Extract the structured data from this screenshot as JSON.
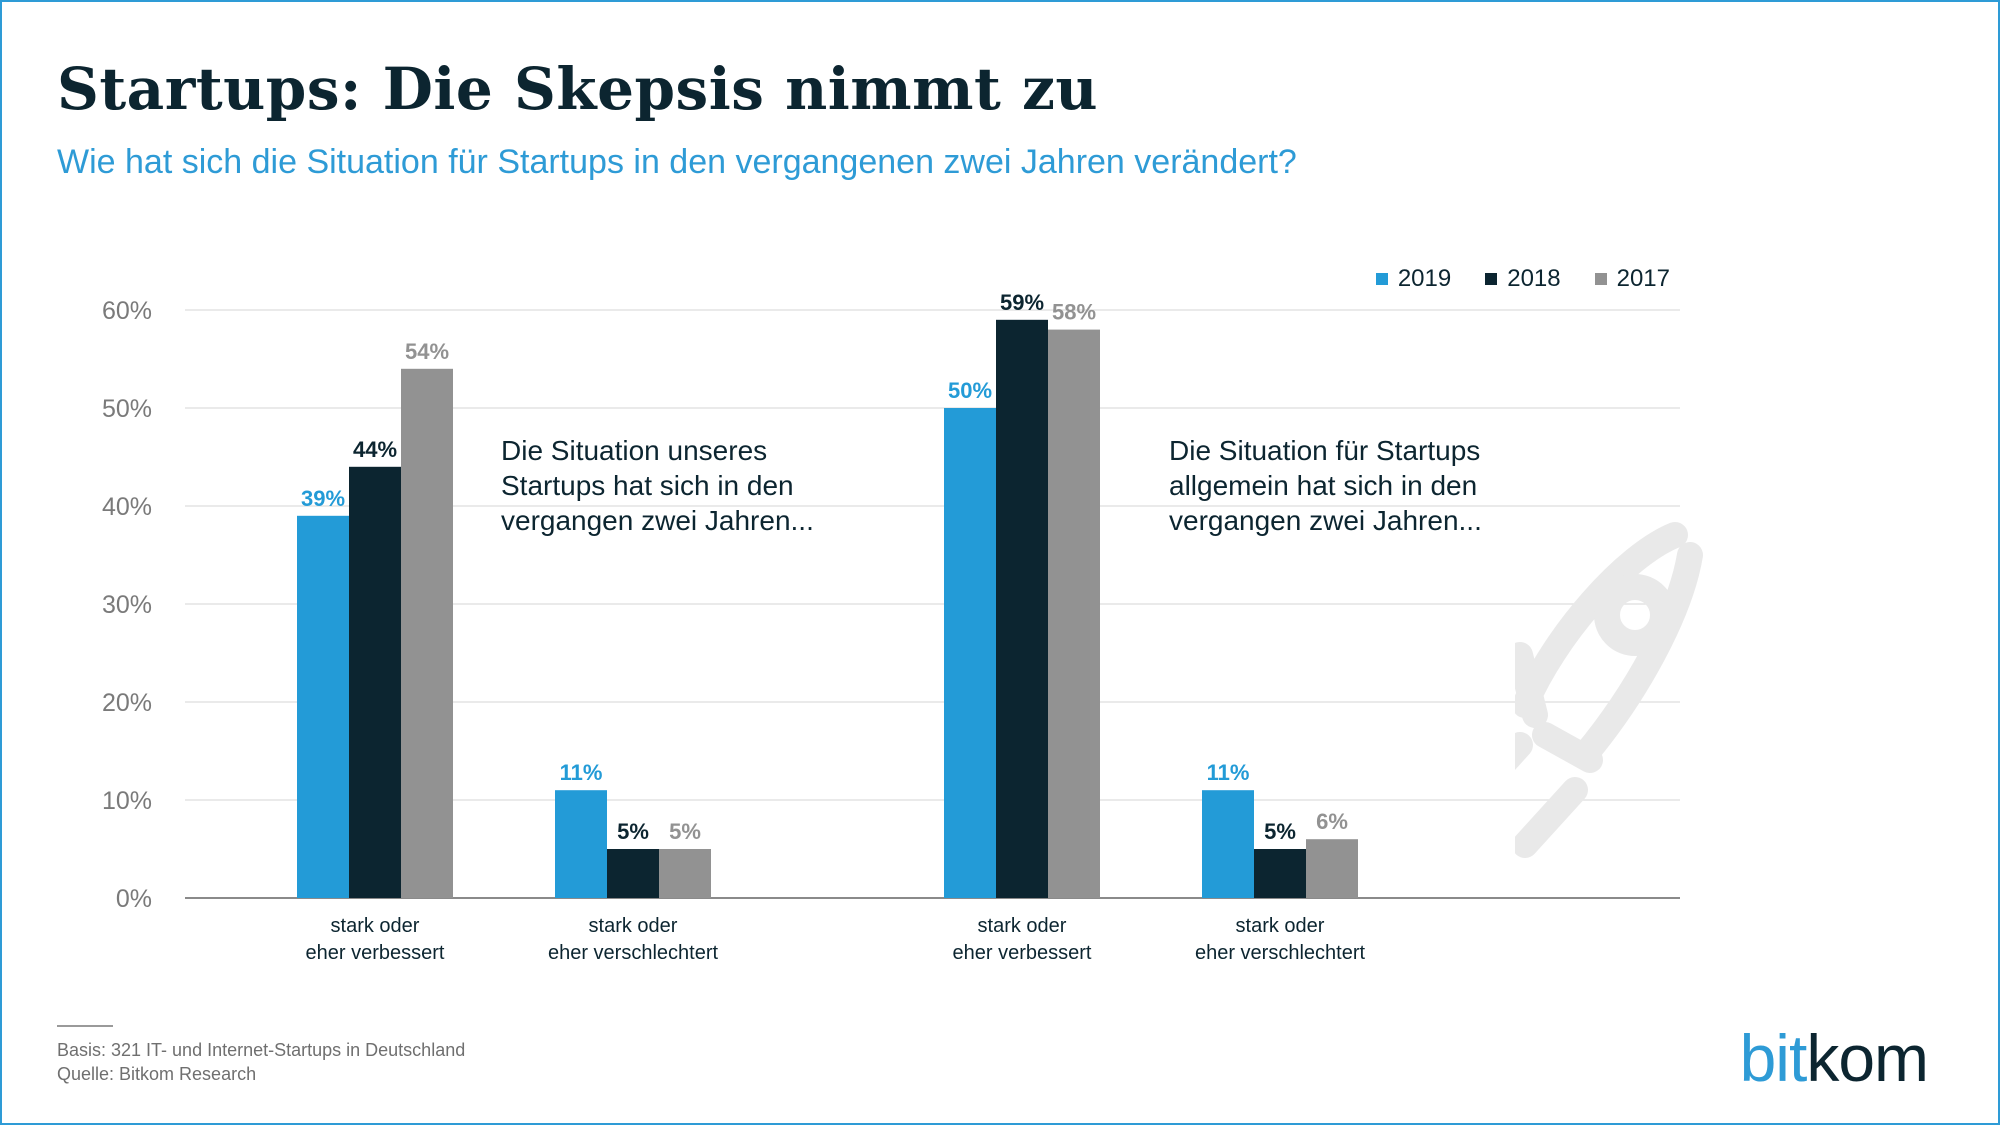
{
  "title": "Startups: Die Skepsis nimmt zu",
  "subtitle": "Wie hat sich die Situation für Startups in den vergangenen zwei Jahren verändert?",
  "annotations": {
    "left": [
      "Die Situation unseres",
      "Startups hat sich in den",
      "vergangen zwei Jahren..."
    ],
    "right": [
      "Die Situation für Startups",
      "allgemein hat sich in den",
      "vergangen zwei Jahren..."
    ]
  },
  "footer": {
    "basis": "Basis: 321 IT- und Internet-Startups in Deutschland",
    "source": "Quelle: Bitkom Research"
  },
  "logo": {
    "part1": "bit",
    "part2": "kom"
  },
  "decoration": {
    "icon": "rocket-icon",
    "color": "#e9e9e9"
  },
  "colors": {
    "2019": "#239bd7",
    "2018": "#0c2530",
    "2017": "#929292",
    "grid": "#e4e4e4",
    "axis": "#8a8a8a",
    "tick": "#7a7a7a"
  },
  "chart_data": {
    "type": "bar",
    "categories": [
      [
        "stark oder",
        "eher verbessert"
      ],
      [
        "stark oder",
        "eher verschlechtert"
      ],
      [
        "stark oder",
        "eher verbessert"
      ],
      [
        "stark oder",
        "eher verschlechtert"
      ]
    ],
    "series": [
      {
        "name": "2019",
        "values": [
          39,
          11,
          50,
          11
        ],
        "labels": [
          "39%",
          "11%",
          "50%",
          "11%"
        ]
      },
      {
        "name": "2018",
        "values": [
          44,
          5,
          59,
          5
        ],
        "labels": [
          "44%",
          "5%",
          "59%",
          "5%"
        ]
      },
      {
        "name": "2017",
        "values": [
          54,
          5,
          58,
          6
        ],
        "labels": [
          "54%",
          "5%",
          "58%",
          "6%"
        ]
      }
    ],
    "yticks": [
      "0%",
      "10%",
      "20%",
      "30%",
      "40%",
      "50%",
      "60%"
    ],
    "ylim": [
      0,
      60
    ],
    "grid": true,
    "legend_position": "top-right"
  }
}
